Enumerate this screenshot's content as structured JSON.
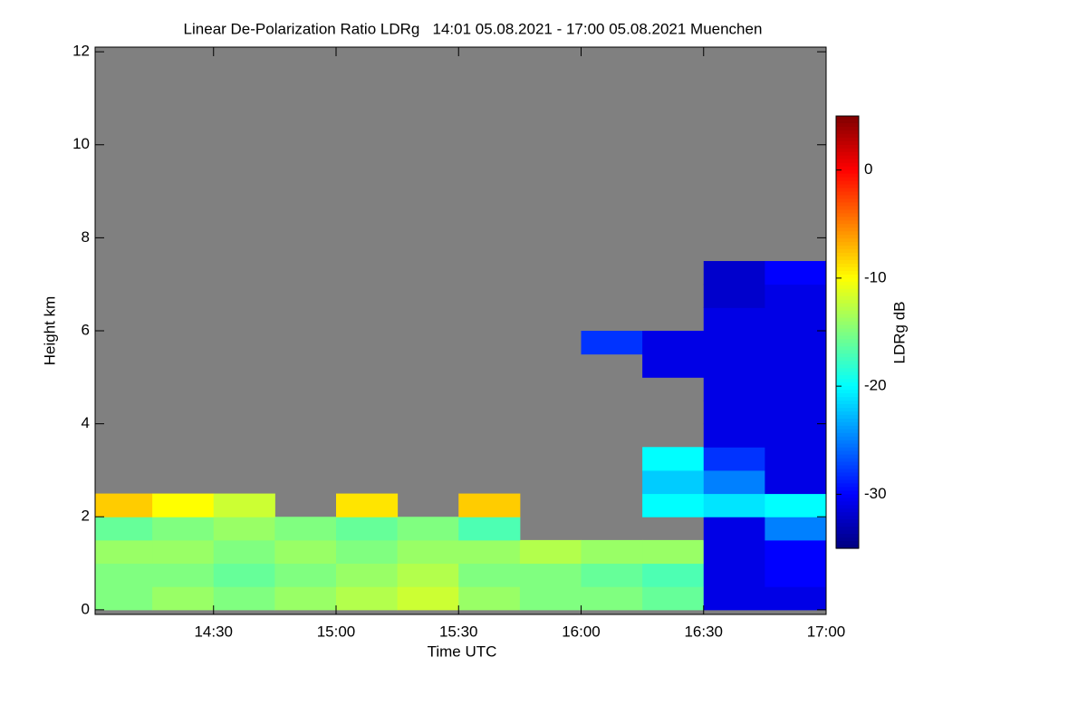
{
  "chart_data": {
    "type": "heatmap",
    "title": "Linear De-Polarization Ratio LDRg   14:01 05.08.2021 - 17:00 05.08.2021 Muenchen",
    "x_label": "Time UTC",
    "y_label": "Height km",
    "colorbar_label": "LDRg dB",
    "colormap": "jet",
    "x": [
      "14:01",
      "14:15",
      "14:30",
      "14:45",
      "15:00",
      "15:15",
      "15:30",
      "15:45",
      "16:00",
      "16:15",
      "16:30",
      "16:45"
    ],
    "xlim": [
      "14:01",
      "17:00"
    ],
    "xticks": [
      "14:30",
      "15:00",
      "15:30",
      "16:00",
      "16:30",
      "17:00"
    ],
    "y": [
      0,
      0.5,
      1,
      1.5,
      2,
      2.5,
      3,
      3.5,
      4,
      4.5,
      5,
      5.5,
      6,
      6.5,
      7
    ],
    "ylim": [
      -0.1,
      12.1
    ],
    "yticks": [
      0,
      2,
      4,
      6,
      8,
      10,
      12
    ],
    "zlim": [
      -35,
      5
    ],
    "zticks": [
      0,
      -10,
      -20,
      -30
    ],
    "z": [
      [
        -15,
        -14,
        -15,
        -14,
        -13,
        -12,
        -14,
        -15,
        -15,
        -16,
        -31,
        -31
      ],
      [
        -15,
        -15,
        -16,
        -15,
        -14,
        -13,
        -15,
        -15,
        -16,
        -17,
        -31,
        -30
      ],
      [
        -14,
        -14,
        -15,
        -14,
        -15,
        -14,
        -14,
        -13,
        -14,
        -14,
        -31,
        -30
      ],
      [
        -16,
        -15,
        -14,
        -15,
        -16,
        -15,
        -17,
        null,
        null,
        null,
        -31,
        -25
      ],
      [
        -8,
        -10,
        -12,
        null,
        -9,
        null,
        -8,
        null,
        null,
        -20,
        -21,
        -20
      ],
      [
        null,
        null,
        null,
        null,
        null,
        null,
        null,
        null,
        null,
        -22,
        -25,
        -31
      ],
      [
        null,
        null,
        null,
        null,
        null,
        null,
        null,
        null,
        null,
        -20,
        -28,
        -31
      ],
      [
        null,
        null,
        null,
        null,
        null,
        null,
        null,
        null,
        null,
        null,
        -31,
        -31
      ],
      [
        null,
        null,
        null,
        null,
        null,
        null,
        null,
        null,
        null,
        null,
        -31,
        -31
      ],
      [
        null,
        null,
        null,
        null,
        null,
        null,
        null,
        null,
        null,
        null,
        -31,
        -31
      ],
      [
        null,
        null,
        null,
        null,
        null,
        null,
        null,
        null,
        null,
        -31,
        -31,
        -31
      ],
      [
        null,
        null,
        null,
        null,
        null,
        null,
        null,
        null,
        -28,
        -31,
        -31,
        -31
      ],
      [
        null,
        null,
        null,
        null,
        null,
        null,
        null,
        null,
        null,
        null,
        -31,
        -31
      ],
      [
        null,
        null,
        null,
        null,
        null,
        null,
        null,
        null,
        null,
        null,
        -32,
        -31
      ],
      [
        null,
        null,
        null,
        null,
        null,
        null,
        null,
        null,
        null,
        null,
        -32,
        -30
      ]
    ]
  }
}
